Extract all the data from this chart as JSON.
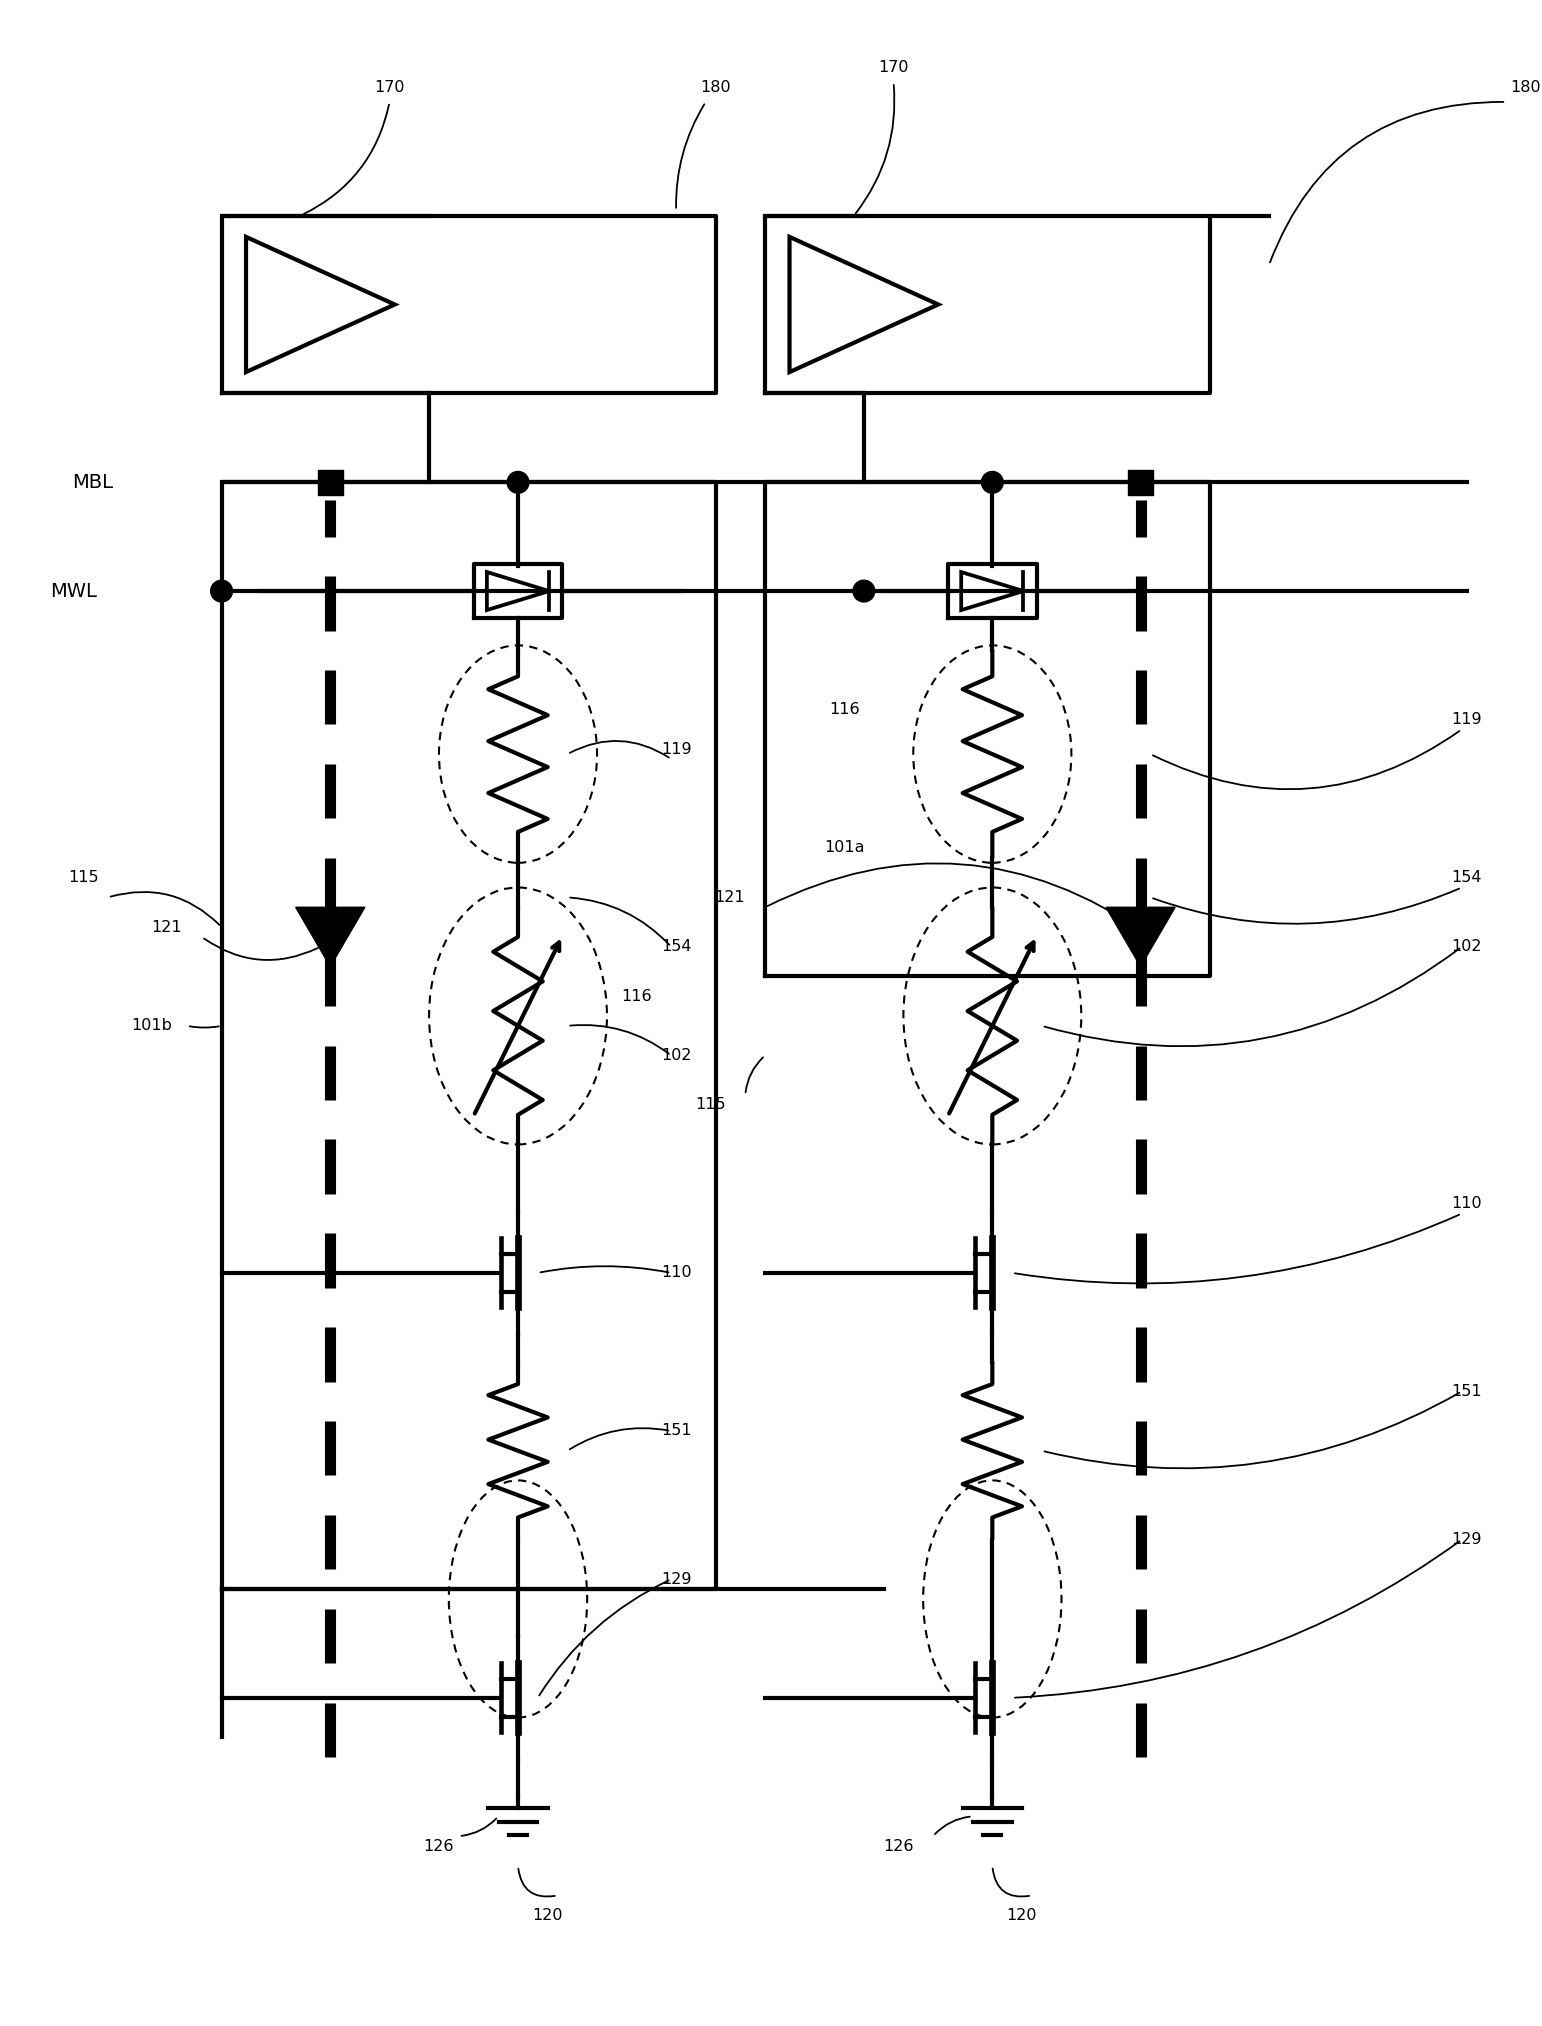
{
  "bg_color": "#ffffff",
  "line_color": "#000000",
  "lw": 2.2,
  "lw_thick": 3.0,
  "figsize": [
    15.42,
    20.26
  ],
  "dpi": 100,
  "xlim": [
    0,
    154.2
  ],
  "ylim": [
    0,
    202.6
  ]
}
